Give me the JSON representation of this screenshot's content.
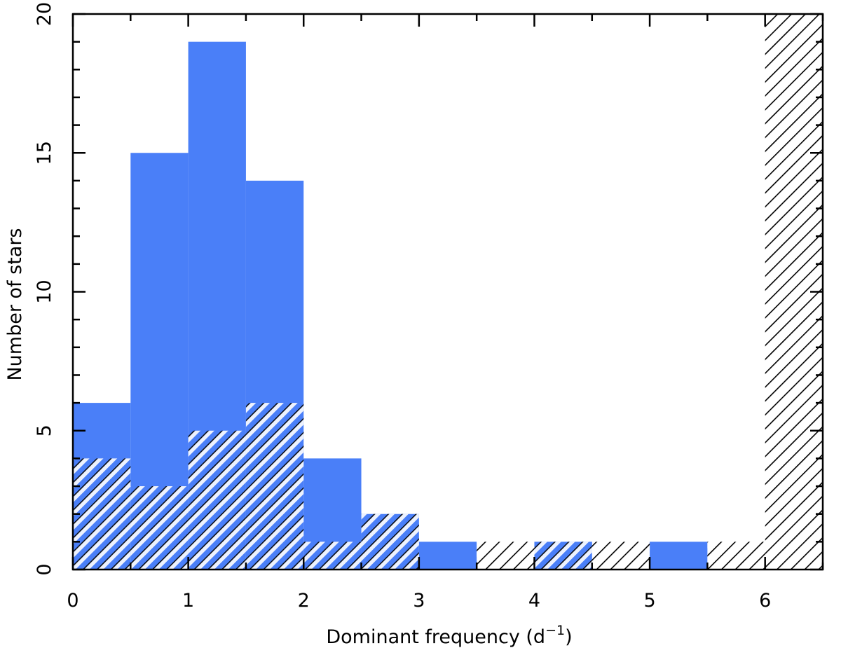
{
  "chart_data": {
    "type": "bar",
    "xlabel": {
      "prefix": "Dominant frequency (d",
      "superscript": "−1",
      "suffix": ")"
    },
    "ylabel": "Number of stars",
    "xlim": [
      0,
      6.5
    ],
    "ylim": [
      0,
      20
    ],
    "x_ticks": [
      0,
      1,
      2,
      3,
      4,
      5,
      6
    ],
    "x_tick_labels": [
      "0",
      "1",
      "2",
      "3",
      "4",
      "5",
      "6"
    ],
    "y_ticks": [
      0,
      5,
      10,
      15,
      20
    ],
    "y_tick_labels": [
      "0",
      "5",
      "10",
      "15",
      "20"
    ],
    "bin_edges": [
      0,
      0.5,
      1,
      1.5,
      2,
      2.5,
      3,
      3.5,
      4,
      4.5,
      5,
      5.5,
      6,
      6.5
    ],
    "grid": false,
    "series": [
      {
        "style": "solid-fill",
        "color": "#4a7ff8",
        "values": [
          6,
          15,
          19,
          14,
          4,
          2,
          1,
          0,
          1,
          0,
          1,
          0,
          0
        ]
      },
      {
        "style": "hatched",
        "color": "#000000",
        "values": [
          4,
          3,
          5,
          6,
          1,
          2,
          0,
          1,
          1,
          1,
          0,
          1,
          20
        ]
      }
    ]
  }
}
